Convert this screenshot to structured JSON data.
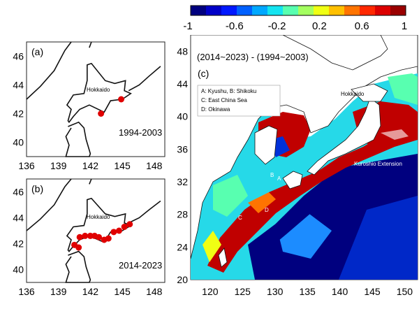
{
  "colorbar": {
    "ticks": [
      "-1",
      "-0.6",
      "-0.2",
      "0.2",
      "0.6",
      "1"
    ],
    "colors": [
      "#00007f",
      "#0000c8",
      "#0018ff",
      "#0060ff",
      "#00a8ff",
      "#14e4f0",
      "#58ffb0",
      "#a4ff60",
      "#f0ff14",
      "#ffc000",
      "#ff7400",
      "#ff2800",
      "#dc0000",
      "#9a0000"
    ]
  },
  "panel_a": {
    "label": "(a)",
    "region_label": "Hokkaido",
    "period": "1994-2003",
    "x_ticks": [
      "136",
      "139",
      "142",
      "145",
      "148"
    ],
    "y_ticks": [
      "46",
      "44",
      "42",
      "40"
    ],
    "points": [
      [
        143.0,
        42.0
      ],
      [
        144.9,
        43.0
      ]
    ]
  },
  "panel_b": {
    "label": "(b)",
    "region_label": "Hokkaido",
    "period": "2014-2023",
    "x_ticks": [
      "136",
      "139",
      "142",
      "145",
      "148"
    ],
    "y_ticks": [
      "46",
      "44",
      "42",
      "40"
    ],
    "points": [
      [
        140.5,
        41.9
      ],
      [
        141.0,
        42.5
      ],
      [
        141.5,
        42.6
      ],
      [
        142.0,
        42.6
      ],
      [
        142.4,
        42.6
      ],
      [
        142.8,
        42.5
      ],
      [
        143.3,
        42.3
      ],
      [
        143.7,
        42.4
      ],
      [
        144.2,
        42.9
      ],
      [
        144.7,
        43.0
      ],
      [
        145.2,
        43.3
      ],
      [
        145.7,
        43.5
      ],
      [
        140.9,
        41.7
      ]
    ]
  },
  "panel_c": {
    "title": "(2014~2023) - (1994~2003)",
    "label": "(c)",
    "x_ticks": [
      "120",
      "125",
      "130",
      "135",
      "140",
      "145",
      "150"
    ],
    "y_ticks": [
      "48",
      "44",
      "40",
      "36",
      "32",
      "28",
      "24",
      "20"
    ],
    "legend": [
      "A: Kyushu, B: Shikoku",
      "C: East China Sea",
      "D: Okinawa"
    ],
    "labels": {
      "hokkaido": "Hokkaido",
      "kuroshio": "Kuroshio Extension",
      "A": "A",
      "B": "B",
      "C": "C",
      "D": "D"
    }
  }
}
